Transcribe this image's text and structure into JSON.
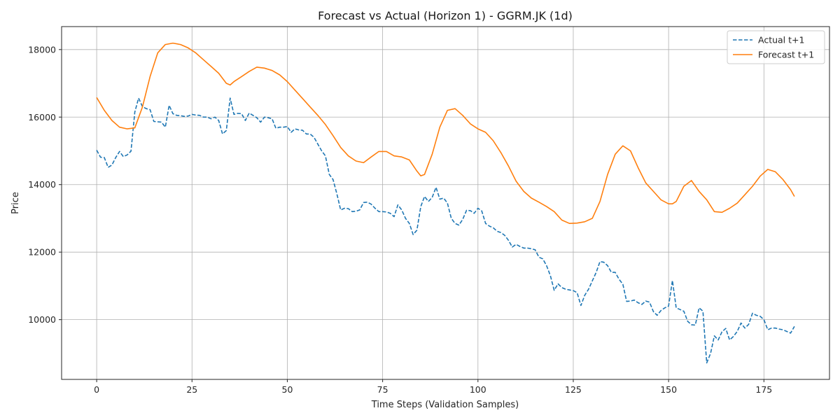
{
  "chart_data": {
    "type": "line",
    "title": "Forecast vs Actual (Horizon 1) - GGRM.JK (1d)",
    "xlabel": "Time Steps (Validation Samples)",
    "ylabel": "Price",
    "xlim": [
      -9.2,
      192.2
    ],
    "ylim": [
      8230,
      18680
    ],
    "xticks": [
      0,
      25,
      50,
      75,
      100,
      125,
      150,
      175
    ],
    "yticks": [
      10000,
      12000,
      14000,
      16000,
      18000
    ],
    "grid": true,
    "legend_position": "top-right",
    "series": [
      {
        "name": "Actual t+1",
        "color": "#1f77b4",
        "style": "dashed",
        "x": [
          0,
          1,
          2,
          3,
          4,
          5,
          6,
          7,
          8,
          9,
          10,
          11,
          12,
          13,
          14,
          15,
          16,
          17,
          18,
          19,
          20,
          21,
          22,
          23,
          24,
          25,
          26,
          27,
          28,
          29,
          30,
          31,
          32,
          33,
          34,
          35,
          36,
          37,
          38,
          39,
          40,
          41,
          42,
          43,
          44,
          45,
          46,
          47,
          48,
          49,
          50,
          51,
          52,
          53,
          54,
          55,
          56,
          57,
          58,
          59,
          60,
          61,
          62,
          63,
          64,
          65,
          66,
          67,
          68,
          69,
          70,
          71,
          72,
          73,
          74,
          75,
          76,
          77,
          78,
          79,
          80,
          81,
          82,
          83,
          84,
          85,
          86,
          87,
          88,
          89,
          90,
          91,
          92,
          93,
          94,
          95,
          96,
          97,
          98,
          99,
          100,
          101,
          102,
          103,
          104,
          105,
          106,
          107,
          108,
          109,
          110,
          111,
          112,
          113,
          114,
          115,
          116,
          117,
          118,
          119,
          120,
          121,
          122,
          123,
          124,
          125,
          126,
          127,
          128,
          129,
          130,
          131,
          132,
          133,
          134,
          135,
          136,
          137,
          138,
          139,
          140,
          141,
          142,
          143,
          144,
          145,
          146,
          147,
          148,
          149,
          150,
          151,
          152,
          153,
          154,
          155,
          156,
          157,
          158,
          159,
          160,
          161,
          162,
          163,
          164,
          165,
          166,
          167,
          168,
          169,
          170,
          171,
          172,
          173,
          174,
          175,
          176,
          177,
          178,
          179,
          180,
          181,
          182,
          183
        ],
        "y": [
          15020,
          14810,
          14800,
          14510,
          14580,
          14800,
          14980,
          14830,
          14880,
          14990,
          16150,
          16560,
          16310,
          16250,
          16220,
          15870,
          15860,
          15850,
          15700,
          16350,
          16100,
          16050,
          16040,
          16020,
          16030,
          16080,
          16060,
          16050,
          16000,
          16000,
          15950,
          16000,
          15900,
          15500,
          15600,
          16560,
          16080,
          16110,
          16100,
          15900,
          16120,
          16050,
          15980,
          15850,
          16000,
          15980,
          15950,
          15670,
          15700,
          15700,
          15720,
          15550,
          15650,
          15620,
          15610,
          15500,
          15500,
          15400,
          15200,
          15000,
          14850,
          14300,
          14150,
          13720,
          13250,
          13300,
          13290,
          13200,
          13210,
          13250,
          13470,
          13480,
          13420,
          13300,
          13200,
          13200,
          13190,
          13150,
          13050,
          13400,
          13250,
          13000,
          12850,
          12520,
          12650,
          13350,
          13650,
          13500,
          13620,
          13920,
          13570,
          13600,
          13450,
          13000,
          12850,
          12800,
          12970,
          13240,
          13230,
          13150,
          13300,
          13220,
          12850,
          12770,
          12720,
          12620,
          12580,
          12500,
          12350,
          12150,
          12230,
          12170,
          12120,
          12120,
          12100,
          12070,
          11850,
          11800,
          11600,
          11300,
          10870,
          11060,
          10950,
          10900,
          10880,
          10860,
          10800,
          10420,
          10720,
          10900,
          11150,
          11400,
          11720,
          11700,
          11600,
          11400,
          11400,
          11200,
          11050,
          10540,
          10550,
          10580,
          10500,
          10450,
          10550,
          10520,
          10240,
          10130,
          10270,
          10350,
          10400,
          11160,
          10350,
          10300,
          10250,
          9950,
          9850,
          9840,
          10350,
          10250,
          8720,
          9000,
          9520,
          9400,
          9640,
          9740,
          9400,
          9500,
          9650,
          9900,
          9750,
          9860,
          10190,
          10130,
          10100,
          10000,
          9700,
          9750,
          9750,
          9720,
          9700,
          9650,
          9600,
          9800
        ]
      },
      {
        "name": "Forecast t+1",
        "color": "#ff7f0e",
        "style": "solid",
        "x": [
          0,
          2,
          4,
          6,
          8,
          10,
          12,
          14,
          16,
          18,
          20,
          22,
          24,
          26,
          28,
          30,
          32,
          34,
          35,
          36,
          38,
          40,
          42,
          44,
          46,
          48,
          50,
          52,
          54,
          56,
          58,
          60,
          62,
          64,
          66,
          68,
          70,
          72,
          74,
          76,
          78,
          80,
          82,
          84,
          85,
          86,
          88,
          90,
          92,
          94,
          96,
          98,
          100,
          102,
          104,
          106,
          108,
          110,
          112,
          114,
          116,
          118,
          120,
          122,
          124,
          126,
          128,
          130,
          132,
          134,
          136,
          138,
          140,
          142,
          144,
          146,
          148,
          150,
          151,
          152,
          154,
          156,
          158,
          160,
          162,
          164,
          166,
          168,
          170,
          172,
          174,
          176,
          178,
          180,
          182,
          183
        ],
        "y": [
          16580,
          16200,
          15900,
          15700,
          15650,
          15680,
          16300,
          17200,
          17900,
          18150,
          18190,
          18150,
          18050,
          17900,
          17700,
          17500,
          17300,
          17000,
          16950,
          17050,
          17200,
          17350,
          17480,
          17450,
          17380,
          17250,
          17050,
          16800,
          16550,
          16300,
          16050,
          15780,
          15450,
          15100,
          14850,
          14700,
          14650,
          14820,
          14980,
          14980,
          14850,
          14820,
          14730,
          14400,
          14260,
          14300,
          14900,
          15700,
          16200,
          16250,
          16050,
          15800,
          15650,
          15550,
          15300,
          14950,
          14550,
          14100,
          13800,
          13600,
          13480,
          13350,
          13200,
          12950,
          12850,
          12860,
          12900,
          13000,
          13500,
          14300,
          14900,
          15150,
          15000,
          14500,
          14050,
          13800,
          13550,
          13430,
          13430,
          13500,
          13950,
          14120,
          13800,
          13550,
          13200,
          13180,
          13300,
          13450,
          13700,
          13950,
          14250,
          14450,
          14380,
          14150,
          13850,
          13650
        ]
      }
    ]
  }
}
